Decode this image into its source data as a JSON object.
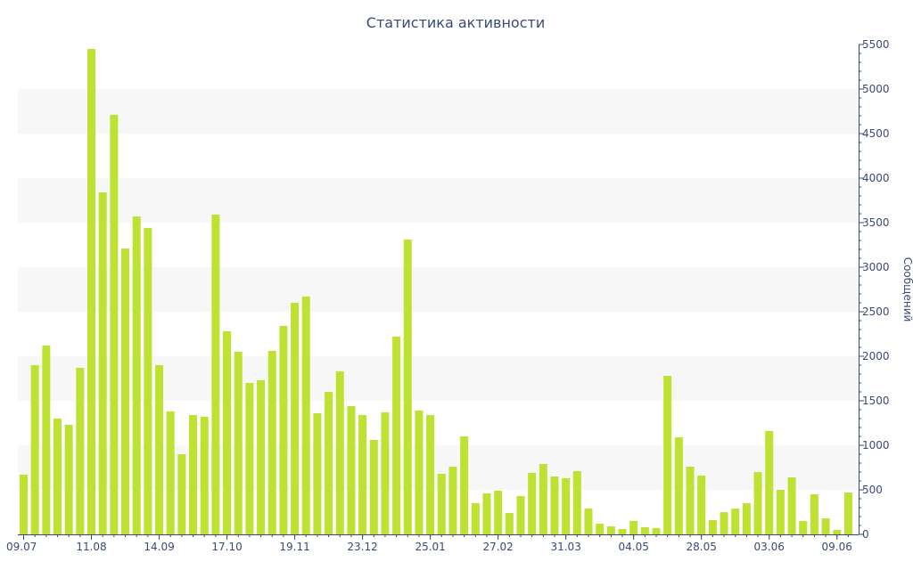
{
  "chart_data": {
    "type": "bar",
    "title": "Статистика активности",
    "ylabel": "Сообщений",
    "xlabel": "",
    "ylim": [
      0,
      5500
    ],
    "y_ticks": [
      0,
      500,
      1000,
      1500,
      2000,
      2500,
      3000,
      3500,
      4000,
      4500,
      5000,
      5500
    ],
    "x_tick_labels": [
      "09.07",
      "11.08",
      "14.09",
      "17.10",
      "19.11",
      "23.12",
      "25.01",
      "27.02",
      "31.03",
      "04.05",
      "28.05",
      "03.06",
      "09.06"
    ],
    "x_tick_bar_index": [
      0,
      6,
      12,
      18,
      24,
      30,
      36,
      42,
      48,
      54,
      60,
      66,
      72
    ],
    "grid": true,
    "legend": "none",
    "bar_color": "#bde232",
    "values": [
      670,
      1900,
      2120,
      1300,
      1230,
      1870,
      5450,
      3840,
      4710,
      3210,
      3570,
      3440,
      1900,
      1380,
      900,
      1340,
      1320,
      3590,
      2280,
      2050,
      1700,
      1730,
      2060,
      2340,
      2600,
      2670,
      1360,
      1600,
      1830,
      1440,
      1340,
      1060,
      1370,
      2220,
      3310,
      1390,
      1340,
      680,
      760,
      1100,
      350,
      460,
      490,
      240,
      430,
      690,
      790,
      650,
      630,
      710,
      290,
      120,
      90,
      60,
      150,
      80,
      70,
      1780,
      1090,
      760,
      660,
      160,
      250,
      290,
      350,
      700,
      1160,
      500,
      640,
      150,
      450,
      180,
      50,
      470
    ]
  },
  "colors": {
    "title": "#3a4a78",
    "axis": "#3a4a78",
    "band": "#f7f7f7",
    "bar": "#bde232"
  }
}
